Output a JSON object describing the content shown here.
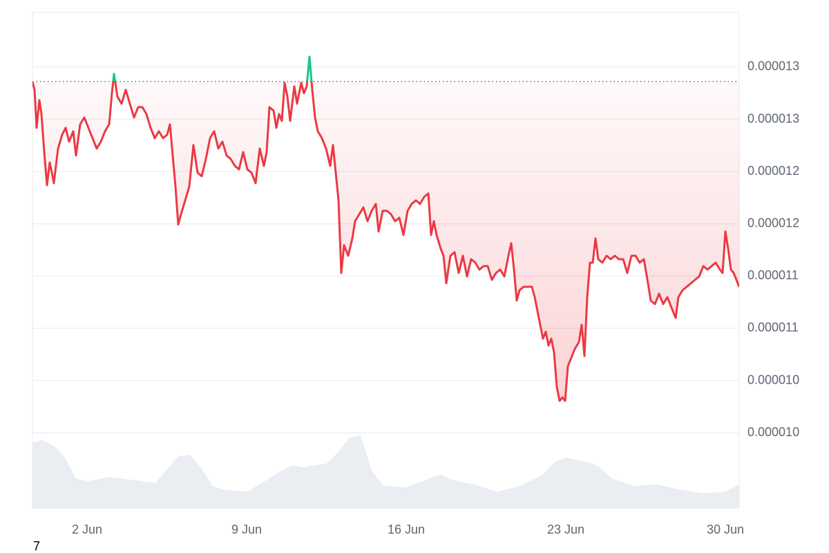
{
  "chart_data": {
    "type": "line",
    "x": [
      -0.394,
      -0.303,
      -0.212,
      -0.091,
      0,
      0.121,
      0.242,
      0.364,
      0.545,
      0.727,
      0.909,
      1.061,
      1.212,
      1.394,
      1.515,
      1.697,
      1.879,
      2.061,
      2.242,
      2.424,
      2.606,
      2.788,
      2.97,
      3.091,
      3.182,
      3.333,
      3.515,
      3.697,
      3.879,
      4.061,
      4.242,
      4.424,
      4.606,
      4.788,
      4.97,
      5.152,
      5.333,
      5.515,
      5.636,
      5.758,
      5.879,
      6.0,
      6.121,
      6.303,
      6.485,
      6.667,
      6.848,
      7.03,
      7.212,
      7.394,
      7.576,
      7.758,
      7.939,
      8.121,
      8.303,
      8.485,
      8.667,
      8.848,
      9.03,
      9.212,
      9.394,
      9.576,
      9.758,
      9.879,
      10.0,
      10.182,
      10.303,
      10.424,
      10.545,
      10.667,
      10.788,
      10.909,
      11.091,
      11.212,
      11.394,
      11.515,
      11.636,
      11.758,
      11.879,
      12.0,
      12.121,
      12.303,
      12.485,
      12.667,
      12.788,
      12.909,
      13.03,
      13.152,
      13.273,
      13.455,
      13.636,
      13.758,
      13.939,
      14.121,
      14.303,
      14.485,
      14.667,
      14.788,
      14.97,
      15.152,
      15.333,
      15.515,
      15.697,
      15.879,
      16.061,
      16.242,
      16.424,
      16.606,
      16.788,
      16.97,
      17.091,
      17.212,
      17.333,
      17.515,
      17.636,
      17.758,
      17.939,
      18.121,
      18.303,
      18.485,
      18.667,
      18.848,
      19.03,
      19.212,
      19.394,
      19.576,
      19.758,
      19.939,
      20.121,
      20.303,
      20.485,
      20.606,
      20.727,
      20.848,
      20.97,
      21.152,
      21.333,
      21.515,
      21.636,
      21.758,
      21.879,
      22.0,
      22.121,
      22.242,
      22.364,
      22.485,
      22.606,
      22.727,
      22.848,
      22.97,
      23.091,
      23.212,
      23.394,
      23.576,
      23.697,
      23.818,
      23.939,
      24.061,
      24.182,
      24.303,
      24.424,
      24.606,
      24.788,
      24.97,
      25.152,
      25.333,
      25.515,
      25.697,
      25.879,
      26.061,
      26.242,
      26.424,
      26.606,
      26.727,
      26.909,
      27.091,
      27.273,
      27.455,
      27.636,
      27.818,
      27.939,
      28.121,
      28.303,
      28.485,
      28.667,
      28.848,
      29.03,
      29.212,
      29.394,
      29.576,
      29.758,
      29.879,
      30.0,
      30.121,
      30.242,
      30.364,
      30.485,
      30.606
    ],
    "values": [
      1.2861e-05,
      1.2782e-05,
      1.2418e-05,
      1.2683e-05,
      1.255e-05,
      1.2186e-05,
      1.1869e-05,
      1.2087e-05,
      1.1889e-05,
      1.222e-05,
      1.2352e-05,
      1.2418e-05,
      1.2286e-05,
      1.2385e-05,
      1.2153e-05,
      1.2451e-05,
      1.2517e-05,
      1.2418e-05,
      1.2319e-05,
      1.222e-05,
      1.2286e-05,
      1.2385e-05,
      1.2451e-05,
      1.2749e-05,
      1.2934e-05,
      1.2716e-05,
      1.2649e-05,
      1.2782e-05,
      1.2649e-05,
      1.2517e-05,
      1.2616e-05,
      1.2616e-05,
      1.255e-05,
      1.2418e-05,
      1.2319e-05,
      1.2385e-05,
      1.2319e-05,
      1.2352e-05,
      1.2451e-05,
      1.2153e-05,
      1.1856e-05,
      1.1492e-05,
      1.1591e-05,
      1.1724e-05,
      1.1856e-05,
      1.2253e-05,
      1.1988e-05,
      1.1955e-05,
      1.212e-05,
      1.2319e-05,
      1.2385e-05,
      1.222e-05,
      1.2286e-05,
      1.2153e-05,
      1.212e-05,
      1.2054e-05,
      1.2021e-05,
      1.2186e-05,
      1.2021e-05,
      1.1988e-05,
      1.1889e-05,
      1.222e-05,
      1.2054e-05,
      1.2186e-05,
      1.2616e-05,
      1.2583e-05,
      1.2418e-05,
      1.255e-05,
      1.2484e-05,
      1.2848e-05,
      1.2716e-05,
      1.2484e-05,
      1.2815e-05,
      1.2649e-05,
      1.2848e-05,
      1.2749e-05,
      1.2815e-05,
      1.3099e-05,
      1.2782e-05,
      1.2517e-05,
      1.2385e-05,
      1.2319e-05,
      1.222e-05,
      1.2054e-05,
      1.2253e-05,
      1.1988e-05,
      1.1724e-05,
      1.1029e-05,
      1.1294e-05,
      1.1194e-05,
      1.136e-05,
      1.1525e-05,
      1.1591e-05,
      1.1657e-05,
      1.1525e-05,
      1.1624e-05,
      1.169e-05,
      1.1426e-05,
      1.1624e-05,
      1.1624e-05,
      1.1591e-05,
      1.1525e-05,
      1.1558e-05,
      1.1393e-05,
      1.1624e-05,
      1.169e-05,
      1.1724e-05,
      1.169e-05,
      1.1757e-05,
      1.179e-05,
      1.1393e-05,
      1.1525e-05,
      1.1393e-05,
      1.1261e-05,
      1.1194e-05,
      1.093e-05,
      1.1194e-05,
      1.1228e-05,
      1.1029e-05,
      1.1194e-05,
      1.0996e-05,
      1.1161e-05,
      1.1128e-05,
      1.1062e-05,
      1.1095e-05,
      1.1095e-05,
      1.0963e-05,
      1.1029e-05,
      1.1062e-05,
      1.0996e-05,
      1.1194e-05,
      1.1314e-05,
      1.1062e-05,
      1.0765e-05,
      1.0864e-05,
      1.0897e-05,
      1.0897e-05,
      1.0897e-05,
      1.0798e-05,
      1.0665e-05,
      1.0533e-05,
      1.0401e-05,
      1.0467e-05,
      1.0335e-05,
      1.0401e-05,
      1.0269e-05,
      9.938e-06,
      9.806e-06,
      9.839e-06,
      9.806e-06,
      1.0136e-05,
      1.0202e-05,
      1.0302e-05,
      1.0368e-05,
      1.0533e-05,
      1.0235e-05,
      1.0798e-05,
      1.1128e-05,
      1.1128e-05,
      1.136e-05,
      1.1161e-05,
      1.1128e-05,
      1.1194e-05,
      1.1161e-05,
      1.1194e-05,
      1.1161e-05,
      1.1161e-05,
      1.1029e-05,
      1.1194e-05,
      1.1194e-05,
      1.1128e-05,
      1.1161e-05,
      1.093e-05,
      1.0765e-05,
      1.0732e-05,
      1.0831e-05,
      1.0732e-05,
      1.0798e-05,
      1.0698e-05,
      1.0599e-05,
      1.0798e-05,
      1.0864e-05,
      1.0897e-05,
      1.093e-05,
      1.0963e-05,
      1.0996e-05,
      1.1095e-05,
      1.1062e-05,
      1.1095e-05,
      1.1128e-05,
      1.1062e-05,
      1.1029e-05,
      1.1426e-05,
      1.1261e-05,
      1.1062e-05,
      1.1029e-05,
      1.0963e-05,
      1.0897e-05
    ],
    "color": "#ea3943",
    "up_color": "#16c784",
    "volume": {
      "x": [
        -0.394,
        0,
        0.5,
        1,
        1.5,
        2,
        3,
        4,
        5,
        6,
        6.5,
        7,
        7.5,
        8,
        9,
        10,
        10.5,
        11,
        11.5,
        12,
        12.5,
        13,
        13.5,
        14,
        14.5,
        15,
        16,
        17,
        17.5,
        18,
        19,
        20,
        21,
        22,
        22.5,
        23,
        24,
        24.5,
        25,
        26,
        27,
        28,
        29,
        30,
        30.606
      ],
      "values": [
        88,
        92,
        85,
        70,
        40,
        36,
        42,
        38,
        34,
        70,
        72,
        55,
        30,
        25,
        22,
        40,
        50,
        58,
        55,
        58,
        60,
        75,
        95,
        98,
        50,
        30,
        28,
        40,
        45,
        38,
        32,
        22,
        30,
        45,
        62,
        68,
        62,
        55,
        40,
        30,
        32,
        25,
        20,
        22,
        32
      ],
      "color": "#eaeef2"
    },
    "xlim": [
      -0.394,
      30.606
    ],
    "xticks": [
      {
        "value": 2,
        "label": "2 Jun"
      },
      {
        "value": 9,
        "label": "9 Jun"
      },
      {
        "value": 16,
        "label": "16 Jun"
      },
      {
        "value": 23,
        "label": "23 Jun"
      },
      {
        "value": 30,
        "label": "30 Jun"
      }
    ],
    "ylim": [
      8.78e-06,
      1.3522e-05
    ],
    "yticks": [
      {
        "value": 1.3e-05,
        "label": "0.000013"
      },
      {
        "value": 1.25e-05,
        "label": "0.000013"
      },
      {
        "value": 1.2e-05,
        "label": "0.000012"
      },
      {
        "value": 1.15e-05,
        "label": "0.000012"
      },
      {
        "value": 1.1e-05,
        "label": "0.000011"
      },
      {
        "value": 1.05e-05,
        "label": "0.000011"
      },
      {
        "value": 1e-05,
        "label": "0.000010"
      },
      {
        "value": 9.5e-06,
        "label": "0.000010"
      }
    ],
    "grid": true,
    "footnote": "7"
  }
}
